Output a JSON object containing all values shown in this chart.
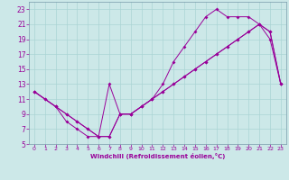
{
  "xlabel": "Windchill (Refroidissement éolien,°C)",
  "bg_color": "#cce8e8",
  "line_color": "#990099",
  "grid_color": "#aad4d4",
  "xlim": [
    -0.5,
    23.5
  ],
  "ylim": [
    5,
    24
  ],
  "xticks": [
    0,
    1,
    2,
    3,
    4,
    5,
    6,
    7,
    8,
    9,
    10,
    11,
    12,
    13,
    14,
    15,
    16,
    17,
    18,
    19,
    20,
    21,
    22,
    23
  ],
  "yticks": [
    5,
    7,
    9,
    11,
    13,
    15,
    17,
    19,
    21,
    23
  ],
  "line1_x": [
    0,
    1,
    2,
    3,
    4,
    5,
    6,
    7,
    8,
    9,
    10,
    11,
    12,
    13,
    14,
    15,
    16,
    17,
    18,
    19,
    20,
    21,
    22,
    23
  ],
  "line1_y": [
    12,
    11,
    10,
    9,
    8,
    7,
    6,
    6,
    9,
    9,
    10,
    11,
    12,
    13,
    14,
    15,
    16,
    17,
    18,
    19,
    20,
    21,
    20,
    13
  ],
  "line2_x": [
    0,
    1,
    2,
    3,
    4,
    5,
    6,
    7,
    8,
    9,
    10,
    11,
    12,
    13,
    14,
    15,
    16,
    17,
    18,
    19,
    20,
    21,
    22,
    23
  ],
  "line2_y": [
    12,
    11,
    10,
    8,
    7,
    6,
    6,
    13,
    9,
    9,
    10,
    11,
    13,
    16,
    18,
    20,
    22,
    23,
    22,
    22,
    22,
    21,
    19,
    13
  ],
  "line3_x": [
    0,
    2,
    3,
    4,
    5,
    6,
    7,
    8,
    9,
    10,
    11,
    12,
    13,
    14,
    15,
    16,
    17,
    18,
    19,
    20,
    21,
    22,
    23
  ],
  "line3_y": [
    12,
    10,
    9,
    8,
    7,
    6,
    6,
    9,
    9,
    10,
    11,
    12,
    13,
    14,
    15,
    16,
    17,
    18,
    19,
    20,
    21,
    20,
    13
  ]
}
